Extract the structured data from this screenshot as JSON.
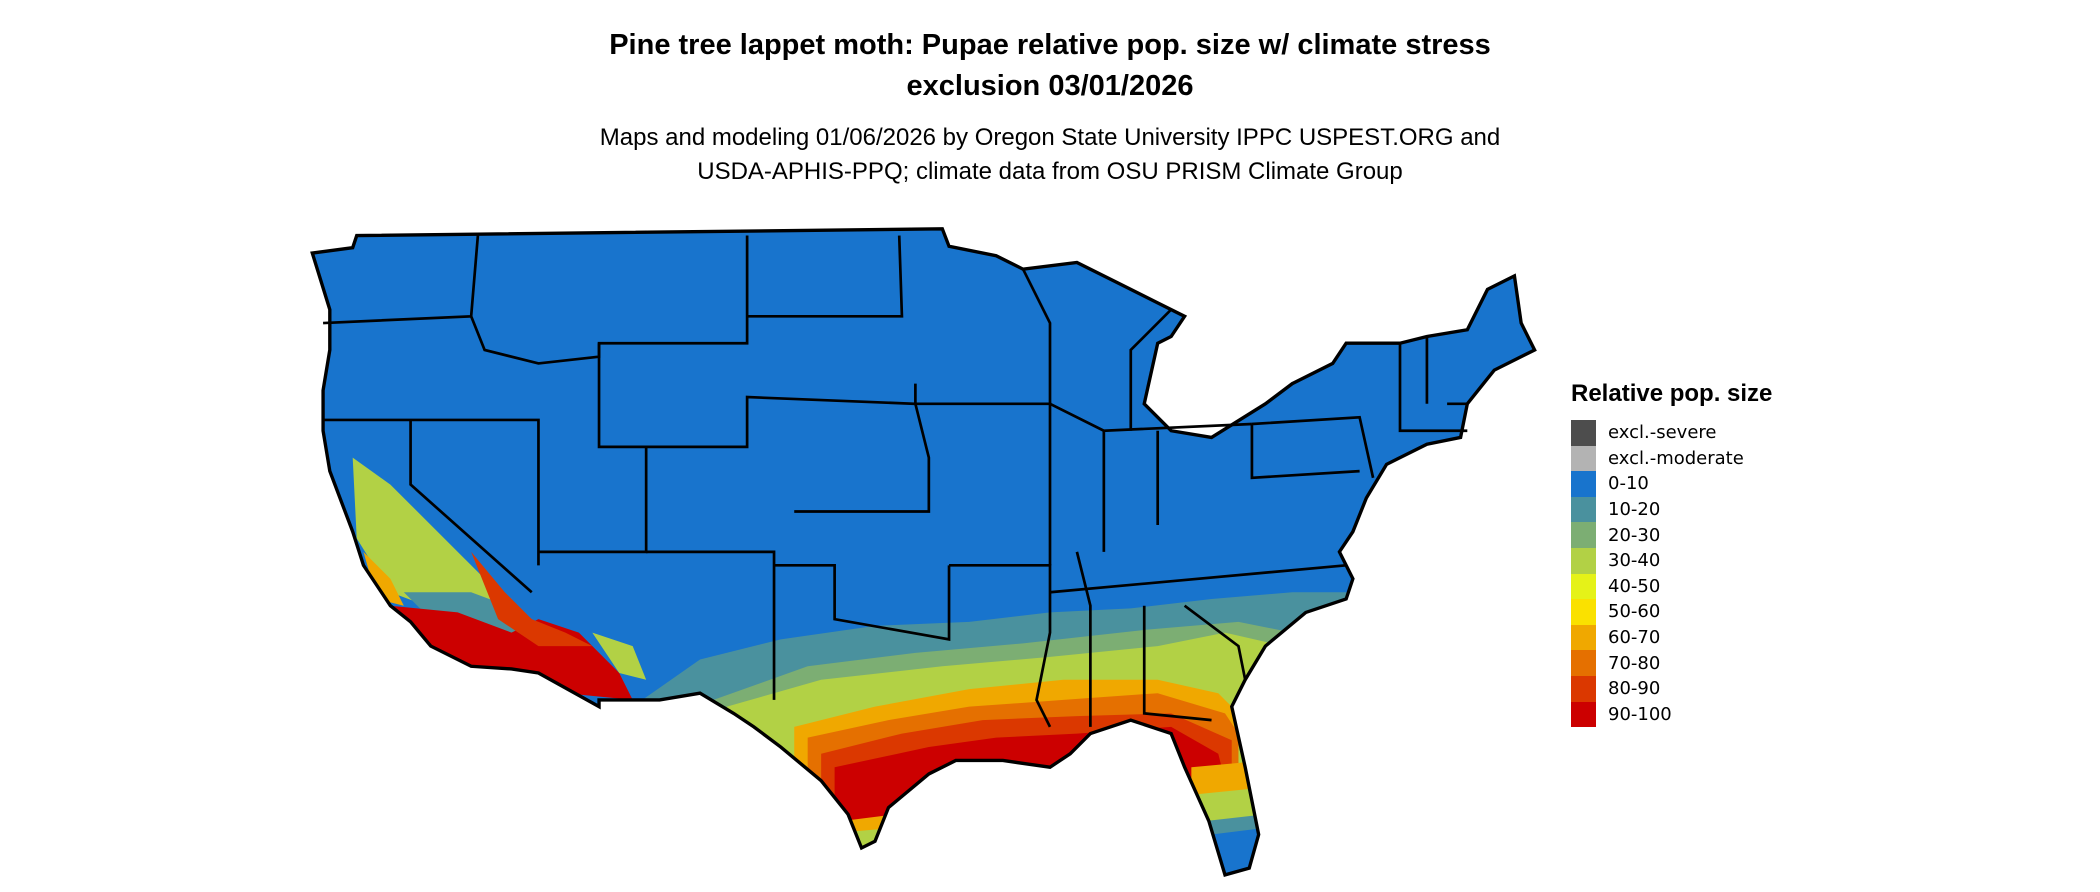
{
  "title_line1": "Pine tree lappet moth: Pupae relative pop. size w/ climate stress",
  "title_line2": "exclusion 03/01/2026",
  "subtitle_line1": "Maps and modeling 01/06/2026 by Oregon State University IPPC USPEST.ORG and",
  "subtitle_line2": "USDA-APHIS-PPQ; climate data from OSU PRISM Climate Group",
  "legend": {
    "title": "Relative pop. size",
    "items": [
      {
        "label": "excl.-severe",
        "color": "#4d4d4d"
      },
      {
        "label": "excl.-moderate",
        "color": "#b3b3b3"
      },
      {
        "label": "0-10",
        "color": "#1874cd"
      },
      {
        "label": "10-20",
        "color": "#4a919e"
      },
      {
        "label": "20-30",
        "color": "#7cae73"
      },
      {
        "label": "30-40",
        "color": "#b2d145"
      },
      {
        "label": "40-50",
        "color": "#e5f218"
      },
      {
        "label": "50-60",
        "color": "#fae100"
      },
      {
        "label": "60-70",
        "color": "#f0a800"
      },
      {
        "label": "70-80",
        "color": "#e57000"
      },
      {
        "label": "80-90",
        "color": "#db3800"
      },
      {
        "label": "90-100",
        "color": "#cc0000"
      }
    ]
  },
  "map": {
    "region": "Contiguous United States",
    "borders": "state"
  }
}
